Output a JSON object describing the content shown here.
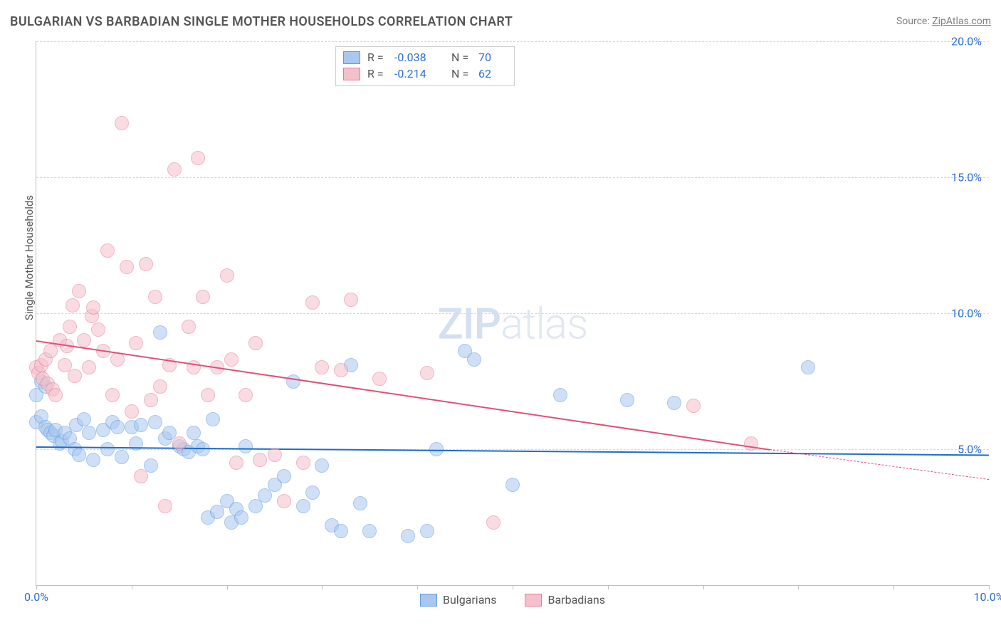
{
  "title": "BULGARIAN VS BARBADIAN SINGLE MOTHER HOUSEHOLDS CORRELATION CHART",
  "source_label": "Source: ",
  "source_link": "ZipAtlas.com",
  "y_axis_label": "Single Mother Households",
  "watermark": {
    "part1": "ZIP",
    "part2": "atlas"
  },
  "chart": {
    "type": "scatter",
    "xlim": [
      0,
      10
    ],
    "ylim": [
      0,
      20
    ],
    "xtick_positions": [
      0,
      1,
      2,
      3,
      4,
      5,
      6,
      7,
      8,
      9,
      10
    ],
    "xtick_labels": {
      "0": "0.0%",
      "10": "10.0%"
    },
    "ytick_positions": [
      5,
      10,
      15,
      20
    ],
    "ytick_labels": {
      "5": "5.0%",
      "10": "10.0%",
      "15": "15.0%",
      "20": "20.0%"
    },
    "grid_color": "#d9d9d9",
    "axis_color": "#bfbfbf",
    "tick_label_color": "#2f6fd0",
    "background_color": "#ffffff",
    "point_radius": 9,
    "point_opacity": 0.55,
    "series": [
      {
        "name": "Bulgarians",
        "fill": "#a9c7ef",
        "stroke": "#5f9be0",
        "R": "-0.038",
        "N": "70",
        "trend": {
          "x1": 0.0,
          "y1": 5.1,
          "x2": 10.0,
          "y2": 4.8,
          "color": "#1f6cc9",
          "width": 2.5
        },
        "points": [
          [
            0.0,
            7.0
          ],
          [
            0.0,
            6.0
          ],
          [
            0.05,
            7.5
          ],
          [
            0.05,
            6.2
          ],
          [
            0.1,
            7.3
          ],
          [
            0.1,
            5.8
          ],
          [
            0.12,
            5.7
          ],
          [
            0.15,
            5.6
          ],
          [
            0.18,
            5.5
          ],
          [
            0.2,
            5.7
          ],
          [
            0.25,
            5.2
          ],
          [
            0.27,
            5.3
          ],
          [
            0.3,
            5.6
          ],
          [
            0.35,
            5.4
          ],
          [
            0.4,
            5.0
          ],
          [
            0.42,
            5.9
          ],
          [
            0.45,
            4.8
          ],
          [
            0.5,
            6.1
          ],
          [
            0.55,
            5.6
          ],
          [
            0.6,
            4.6
          ],
          [
            0.7,
            5.7
          ],
          [
            0.75,
            5.0
          ],
          [
            0.8,
            6.0
          ],
          [
            0.85,
            5.8
          ],
          [
            0.9,
            4.7
          ],
          [
            1.0,
            5.8
          ],
          [
            1.05,
            5.2
          ],
          [
            1.1,
            5.9
          ],
          [
            1.2,
            4.4
          ],
          [
            1.25,
            6.0
          ],
          [
            1.3,
            9.3
          ],
          [
            1.35,
            5.4
          ],
          [
            1.4,
            5.6
          ],
          [
            1.5,
            5.1
          ],
          [
            1.55,
            5.0
          ],
          [
            1.6,
            4.9
          ],
          [
            1.65,
            5.6
          ],
          [
            1.7,
            5.1
          ],
          [
            1.75,
            5.0
          ],
          [
            1.8,
            2.5
          ],
          [
            1.85,
            6.1
          ],
          [
            1.9,
            2.7
          ],
          [
            2.0,
            3.1
          ],
          [
            2.05,
            2.3
          ],
          [
            2.1,
            2.8
          ],
          [
            2.15,
            2.5
          ],
          [
            2.2,
            5.1
          ],
          [
            2.3,
            2.9
          ],
          [
            2.4,
            3.3
          ],
          [
            2.5,
            3.7
          ],
          [
            2.6,
            4.0
          ],
          [
            2.7,
            7.5
          ],
          [
            2.8,
            2.9
          ],
          [
            2.9,
            3.4
          ],
          [
            3.0,
            4.4
          ],
          [
            3.1,
            2.2
          ],
          [
            3.2,
            2.0
          ],
          [
            3.3,
            8.1
          ],
          [
            3.4,
            3.0
          ],
          [
            3.5,
            2.0
          ],
          [
            3.9,
            1.8
          ],
          [
            4.1,
            2.0
          ],
          [
            4.2,
            5.0
          ],
          [
            4.5,
            8.6
          ],
          [
            4.6,
            8.3
          ],
          [
            5.0,
            3.7
          ],
          [
            5.5,
            7.0
          ],
          [
            6.2,
            6.8
          ],
          [
            6.7,
            6.7
          ],
          [
            8.1,
            8.0
          ]
        ]
      },
      {
        "name": "Barbadians",
        "fill": "#f4c0cb",
        "stroke": "#e67b97",
        "R": "-0.214",
        "N": "62",
        "trend": {
          "x1": 0.0,
          "y1": 9.0,
          "x2": 7.7,
          "y2": 5.0,
          "color": "#e15078",
          "width": 2.5
        },
        "trend_dash": {
          "x1": 7.7,
          "y1": 5.0,
          "x2": 10.0,
          "y2": 3.9,
          "color": "#e15078",
          "width": 1
        },
        "points": [
          [
            0.0,
            8.0
          ],
          [
            0.02,
            7.8
          ],
          [
            0.05,
            8.1
          ],
          [
            0.07,
            7.6
          ],
          [
            0.1,
            8.3
          ],
          [
            0.12,
            7.4
          ],
          [
            0.15,
            8.6
          ],
          [
            0.17,
            7.2
          ],
          [
            0.2,
            7.0
          ],
          [
            0.25,
            9.0
          ],
          [
            0.3,
            8.1
          ],
          [
            0.32,
            8.8
          ],
          [
            0.35,
            9.5
          ],
          [
            0.38,
            10.3
          ],
          [
            0.4,
            7.7
          ],
          [
            0.45,
            10.8
          ],
          [
            0.5,
            9.0
          ],
          [
            0.55,
            8.0
          ],
          [
            0.58,
            9.9
          ],
          [
            0.6,
            10.2
          ],
          [
            0.65,
            9.4
          ],
          [
            0.7,
            8.6
          ],
          [
            0.75,
            12.3
          ],
          [
            0.8,
            7.0
          ],
          [
            0.85,
            8.3
          ],
          [
            0.9,
            17.0
          ],
          [
            0.95,
            11.7
          ],
          [
            1.0,
            6.4
          ],
          [
            1.05,
            8.9
          ],
          [
            1.1,
            4.0
          ],
          [
            1.15,
            11.8
          ],
          [
            1.2,
            6.8
          ],
          [
            1.25,
            10.6
          ],
          [
            1.3,
            7.3
          ],
          [
            1.35,
            2.9
          ],
          [
            1.4,
            8.1
          ],
          [
            1.45,
            15.3
          ],
          [
            1.5,
            5.2
          ],
          [
            1.6,
            9.5
          ],
          [
            1.65,
            8.0
          ],
          [
            1.7,
            15.7
          ],
          [
            1.75,
            10.6
          ],
          [
            1.8,
            7.0
          ],
          [
            1.9,
            8.0
          ],
          [
            2.0,
            11.4
          ],
          [
            2.05,
            8.3
          ],
          [
            2.1,
            4.5
          ],
          [
            2.2,
            7.0
          ],
          [
            2.3,
            8.9
          ],
          [
            2.35,
            4.6
          ],
          [
            2.5,
            4.8
          ],
          [
            2.6,
            3.1
          ],
          [
            2.8,
            4.5
          ],
          [
            2.9,
            10.4
          ],
          [
            3.0,
            8.0
          ],
          [
            3.2,
            7.9
          ],
          [
            3.3,
            10.5
          ],
          [
            3.6,
            7.6
          ],
          [
            4.1,
            7.8
          ],
          [
            4.8,
            2.3
          ],
          [
            6.9,
            6.6
          ],
          [
            7.5,
            5.2
          ]
        ]
      }
    ],
    "legend_bottom": [
      {
        "label": "Bulgarians",
        "fill": "#a9c7ef",
        "stroke": "#5f9be0"
      },
      {
        "label": "Barbadians",
        "fill": "#f4c0cb",
        "stroke": "#e67b97"
      }
    ]
  }
}
